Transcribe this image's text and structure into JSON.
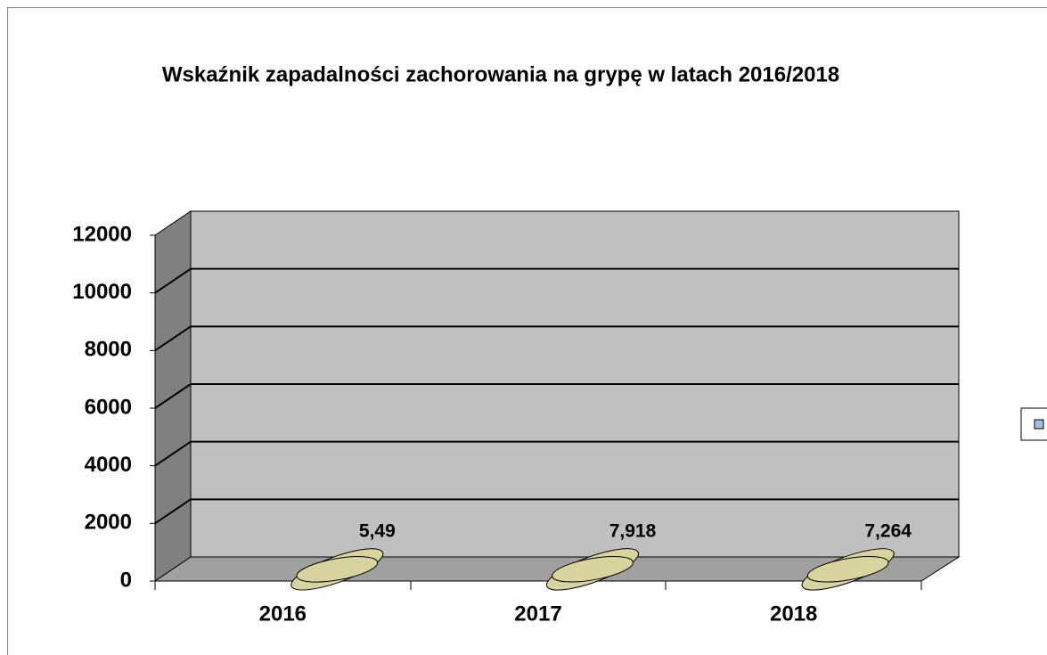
{
  "chart_data": {
    "type": "bar3d",
    "title": "Wskaźnik zapadalności zachorowania na grypę w latach 2016/2018",
    "categories": [
      "2016",
      "2017",
      "2018"
    ],
    "values": [
      5.49,
      7.918,
      7.264
    ],
    "value_labels": [
      "5,49",
      "7,918",
      "7,264"
    ],
    "color": "#d8d4a0",
    "ylim": [
      0,
      12000
    ],
    "yticks": [
      0,
      2000,
      4000,
      6000,
      8000,
      10000,
      12000
    ],
    "grid": true,
    "legend": "right",
    "legend_color": "#9dc3e6"
  }
}
